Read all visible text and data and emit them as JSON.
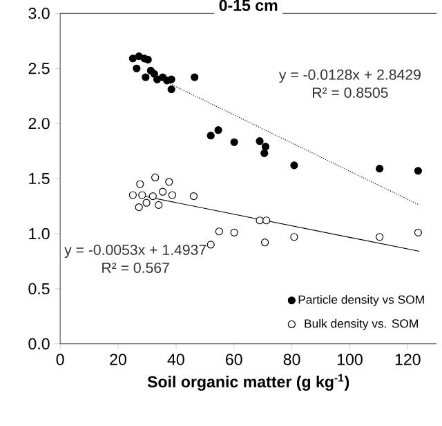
{
  "chart_data": {
    "type": "scatter",
    "title": "0-15 cm",
    "xlabel": "Soil organic matter (g kg$^{-1}$)",
    "xlim": [
      0,
      130
    ],
    "xticks": [
      0,
      20,
      40,
      60,
      80,
      100,
      120
    ],
    "ylim": [
      0,
      3
    ],
    "yticks": [
      {
        "value": 0,
        "label": "0.0"
      },
      {
        "value": 0.5,
        "label": "0.5"
      },
      {
        "value": 1,
        "label": "1.0"
      },
      {
        "value": 1.5,
        "label": "1.5"
      },
      {
        "value": 2,
        "label": "2.0"
      },
      {
        "value": 2.5,
        "label": "2.5"
      },
      {
        "value": 3,
        "label": "3.0"
      }
    ],
    "grid": false,
    "legend": "bottom right",
    "series": [
      {
        "name": "Particle density vs SOM",
        "color": "#000000",
        "marker": "circle",
        "x": [
          25.1,
          27.2,
          29.1,
          30.3,
          26.4,
          29.5,
          31.3,
          32.5,
          33.5,
          35.4,
          36.9,
          38.4,
          38.4,
          46.4,
          52.0,
          54.6,
          60.1,
          68.9,
          70.9,
          70.5,
          80.8,
          110.3,
          123.6
        ],
        "values": [
          2.59,
          2.61,
          2.59,
          2.58,
          2.5,
          2.42,
          2.48,
          2.45,
          2.4,
          2.42,
          2.39,
          2.4,
          2.31,
          2.42,
          1.89,
          1.94,
          1.83,
          1.84,
          1.79,
          1.73,
          1.62,
          1.59,
          1.57
        ]
      },
      {
        "name": "Bulk density vs. SOM",
        "color": "#ffffff",
        "marker": "circle",
        "x": [
          25.1,
          27.6,
          27.2,
          32.8,
          37.6,
          28.3,
          32.0,
          35.4,
          38.7,
          46.1,
          29.8,
          34.0,
          52.0,
          54.9,
          60.1,
          68.9,
          71.2,
          70.7,
          80.8,
          110.3,
          123.6
        ],
        "values": [
          1.35,
          1.45,
          1.24,
          1.51,
          1.47,
          1.35,
          1.34,
          1.38,
          1.35,
          1.34,
          1.28,
          1.26,
          0.9,
          1.02,
          1.01,
          1.12,
          1.12,
          0.92,
          0.97,
          0.97,
          1.01
        ]
      },
      {
        "type": "line",
        "color": "#000000",
        "line_style": "dotted",
        "marker": "none",
        "x": [
          38,
          124
        ],
        "values": [
          2.36,
          1.26
        ]
      },
      {
        "type": "line",
        "color": "#000000",
        "line_style": "solid",
        "marker": "none",
        "x": [
          27,
          124
        ],
        "values": [
          1.35,
          0.84
        ]
      }
    ],
    "annotations": [
      "y = -0.0128x + 2.8429",
      "R² = 0.8505",
      "y = -0.0053x + 1.4937",
      "R² = 0.567"
    ]
  }
}
